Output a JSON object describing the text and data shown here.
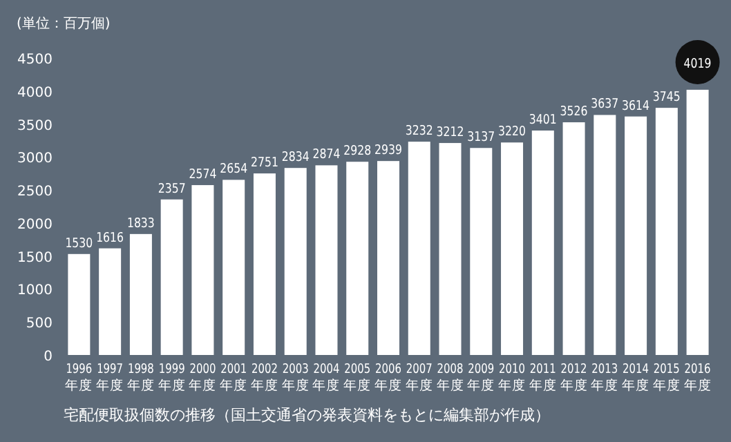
{
  "chart_data": {
    "type": "bar",
    "ylabel": "(単位：百万個)",
    "categories": [
      "1996\n年度",
      "1997\n年度",
      "1998\n年度",
      "1999\n年度",
      "2000\n年度",
      "2001\n年度",
      "2002\n年度",
      "2003\n年度",
      "2004\n年度",
      "2005\n年度",
      "2006\n年度",
      "2007\n年度",
      "2008\n年度",
      "2009\n年度",
      "2010\n年度",
      "2011\n年度",
      "2012\n年度",
      "2013\n年度",
      "2014\n年度",
      "2015\n年度",
      "2016\n年度"
    ],
    "values": [
      1530,
      1616,
      1833,
      2357,
      2574,
      2654,
      2751,
      2834,
      2874,
      2928,
      2939,
      3232,
      3212,
      3137,
      3220,
      3401,
      3526,
      3637,
      3614,
      3745,
      4019
    ],
    "color": "#ffffff",
    "data_labels": true,
    "ylim": [
      0,
      4500
    ],
    "yticks": [
      0,
      500,
      1000,
      1500,
      2000,
      2500,
      3000,
      3500,
      4000,
      4500
    ],
    "grid": false,
    "annotations": [
      "宅配便取扱個数の推移（国土交通省の発表資料をもとに編集部が作成）"
    ]
  }
}
